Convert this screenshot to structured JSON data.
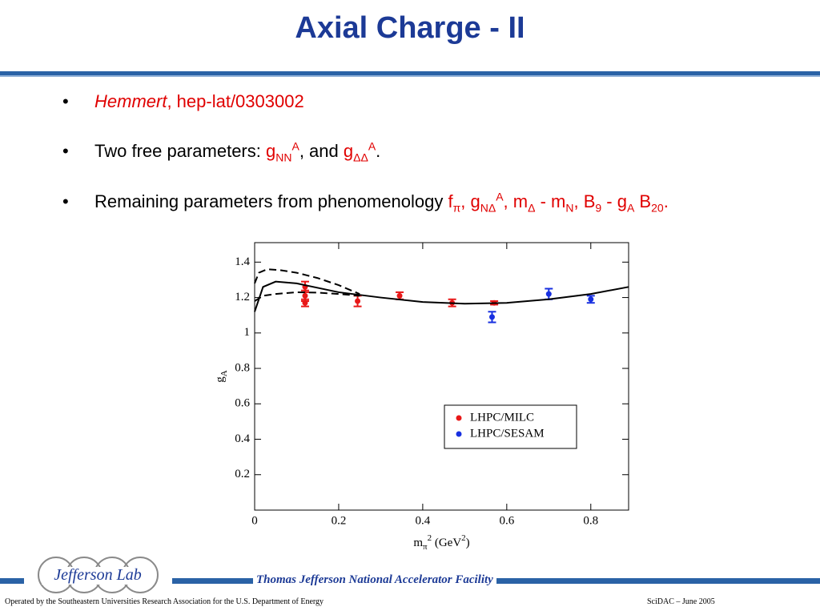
{
  "slide": {
    "title": "Axial Charge - II",
    "bullets": [
      [
        {
          "text": "Hemmert",
          "color": "#e00000",
          "italic": true
        },
        {
          "text": ", hep-lat/0303002",
          "color": "#e00000"
        }
      ],
      [
        {
          "text": "Two free parameters: "
        },
        {
          "text": "g",
          "color": "#e00000"
        },
        {
          "text": "NN",
          "color": "#e00000",
          "pos": "sub"
        },
        {
          "text": "A",
          "color": "#e00000",
          "pos": "sup"
        },
        {
          "text": ",  and "
        },
        {
          "text": "g",
          "color": "#e00000"
        },
        {
          "text": "ΔΔ",
          "color": "#e00000",
          "pos": "sub"
        },
        {
          "text": "A",
          "color": "#e00000",
          "pos": "sup"
        },
        {
          "text": "."
        }
      ],
      [
        {
          "text": "Remaining parameters from phenomenology "
        },
        {
          "text": "f",
          "color": "#e00000"
        },
        {
          "text": "π",
          "color": "#e00000",
          "pos": "sub"
        },
        {
          "text": ", g",
          "color": "#e00000"
        },
        {
          "text": "NΔ",
          "color": "#e00000",
          "pos": "sub"
        },
        {
          "text": "A",
          "color": "#e00000",
          "pos": "sup"
        },
        {
          "text": ", m",
          "color": "#e00000"
        },
        {
          "text": "Δ",
          "color": "#e00000",
          "pos": "sub"
        },
        {
          "text": " - m",
          "color": "#e00000"
        },
        {
          "text": "N",
          "color": "#e00000",
          "pos": "sub"
        },
        {
          "text": ", B",
          "color": "#e00000"
        },
        {
          "text": "9",
          "color": "#e00000",
          "pos": "sub"
        },
        {
          "text": " - g",
          "color": "#e00000"
        },
        {
          "text": "A",
          "color": "#e00000",
          "pos": "sub"
        },
        {
          "text": " B",
          "color": "#e00000"
        },
        {
          "text": "20",
          "color": "#e00000",
          "pos": "sub"
        },
        {
          "text": ".",
          "color": "#e00000"
        }
      ]
    ],
    "footer": {
      "logo": "Jefferson Lab",
      "facility": "Thomas Jefferson National Accelerator Facility",
      "operator": "Operated by the Southeastern Universities Research Association for the U.S. Department of  Energy",
      "event": "SciDAC – June  2005"
    }
  },
  "chart_data": {
    "type": "scatter",
    "x_label": [
      {
        "text": "m"
      },
      {
        "text": "π",
        "pos": "sub"
      },
      {
        "text": "2",
        "pos": "sup"
      },
      {
        "text": " (GeV"
      },
      {
        "text": "2",
        "pos": "sup"
      },
      {
        "text": ")"
      }
    ],
    "y_label": [
      {
        "text": "g"
      },
      {
        "text": "A",
        "pos": "sub"
      }
    ],
    "xlim": [
      0,
      0.89
    ],
    "ylim": [
      0,
      1.51
    ],
    "xticks": [
      0,
      0.2,
      0.4,
      0.6,
      0.8
    ],
    "yticks": [
      0.2,
      0.4,
      0.6,
      0.8,
      1,
      1.2,
      1.4
    ],
    "legend": "lower right",
    "series": [
      {
        "name": "LHPC/MILC",
        "color": "#e81818",
        "x": [
          0.12,
          0.12,
          0.12,
          0.245,
          0.345,
          0.47,
          0.57
        ],
        "values": [
          1.26,
          1.21,
          1.17,
          1.18,
          1.21,
          1.17,
          1.17
        ],
        "errors": [
          0.03,
          0.03,
          0.02,
          0.03,
          0.02,
          0.02,
          0.01
        ]
      },
      {
        "name": "LHPC/SESAM",
        "color": "#1830e0",
        "x": [
          0.565,
          0.7,
          0.8
        ],
        "values": [
          1.09,
          1.22,
          1.19
        ],
        "errors": [
          0.03,
          0.03,
          0.02
        ]
      },
      {
        "line": "solid",
        "color": "#000000",
        "x": [
          0,
          0.02,
          0.05,
          0.1,
          0.2,
          0.3,
          0.4,
          0.5,
          0.6,
          0.7,
          0.8,
          0.89
        ],
        "values": [
          1.12,
          1.26,
          1.29,
          1.28,
          1.23,
          1.2,
          1.175,
          1.165,
          1.17,
          1.19,
          1.22,
          1.26
        ]
      },
      {
        "line": "dashed",
        "color": "#000000",
        "x": [
          0,
          0.01,
          0.03,
          0.06,
          0.1,
          0.15,
          0.2,
          0.25
        ],
        "values": [
          1.28,
          1.34,
          1.36,
          1.355,
          1.34,
          1.31,
          1.27,
          1.22
        ]
      },
      {
        "line": "dashed",
        "color": "#000000",
        "x": [
          0,
          0.02,
          0.05,
          0.1,
          0.15,
          0.2,
          0.25
        ],
        "values": [
          1.18,
          1.21,
          1.22,
          1.23,
          1.228,
          1.22,
          1.21
        ]
      }
    ]
  }
}
